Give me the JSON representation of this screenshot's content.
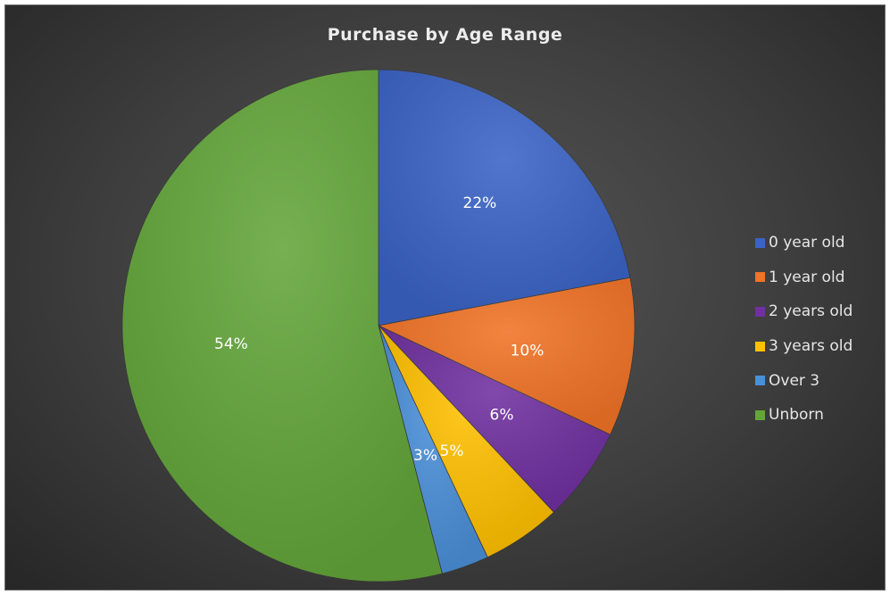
{
  "chart_data": {
    "type": "pie",
    "title": "Purchase by Age Range",
    "legend_position": "right",
    "start_angle_deg": 0,
    "direction": "clockwise",
    "slices": [
      {
        "name": "0 year old",
        "value": 22,
        "label": "22%",
        "color": "#3a63c5"
      },
      {
        "name": "1 year old",
        "value": 10,
        "label": "10%",
        "color": "#f07326"
      },
      {
        "name": "2 years old",
        "value": 6,
        "label": "6%",
        "color": "#7030a0"
      },
      {
        "name": "3 years old",
        "value": 5,
        "label": "5%",
        "color": "#ffc000"
      },
      {
        "name": "Over 3",
        "value": 3,
        "label": "3%",
        "color": "#4a8fd8"
      },
      {
        "name": "Unborn",
        "value": 54,
        "label": "54%",
        "color": "#63a53a"
      }
    ]
  }
}
